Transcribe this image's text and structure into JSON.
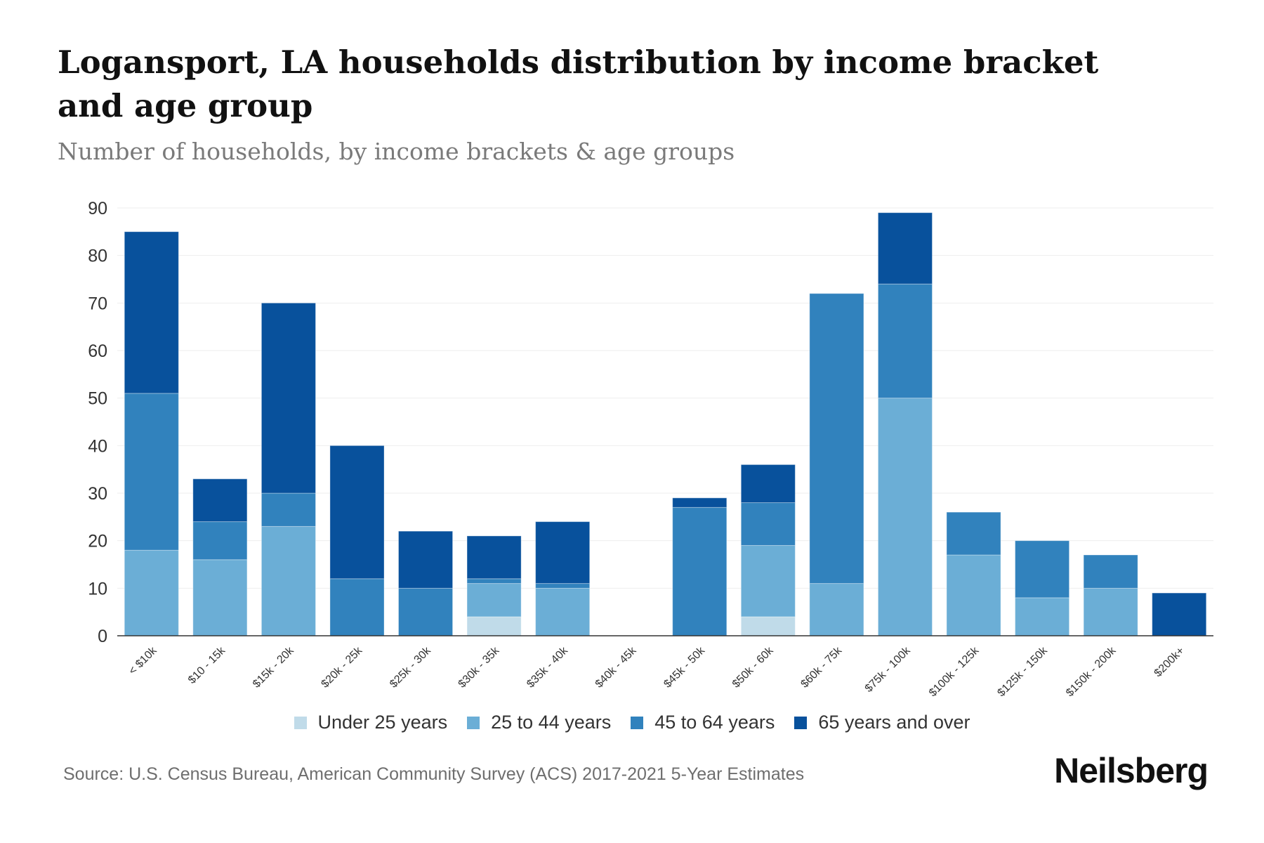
{
  "title": "Logansport, LA households distribution by income bracket and age group",
  "subtitle": "Number of households, by income brackets & age groups",
  "source": "Source: U.S. Census Bureau, American Community Survey (ACS) 2017-2021 5-Year Estimates",
  "brand": "Neilsberg",
  "chart_data": {
    "type": "bar",
    "stacked": true,
    "title": "Logansport, LA households distribution by income bracket and age group",
    "xlabel": "",
    "ylabel": "",
    "ylim": [
      0,
      90
    ],
    "yticks": [
      0,
      10,
      20,
      30,
      40,
      50,
      60,
      70,
      80,
      90
    ],
    "grid": true,
    "legend_position": "bottom",
    "categories": [
      "< $10k",
      "$10 - 15k",
      "$15k - 20k",
      "$20k - 25k",
      "$25k - 30k",
      "$30k - 35k",
      "$35k - 40k",
      "$40k - 45k",
      "$45k - 50k",
      "$50k - 60k",
      "$60k - 75k",
      "$75k - 100k",
      "$100k - 125k",
      "$125k - 150k",
      "$150k - 200k",
      "$200k+"
    ],
    "series": [
      {
        "name": "Under 25 years",
        "color": "#c0dbe9",
        "values": [
          0,
          0,
          0,
          0,
          0,
          4,
          0,
          0,
          0,
          4,
          0,
          0,
          0,
          0,
          0,
          0
        ]
      },
      {
        "name": "25 to 44 years",
        "color": "#6baed6",
        "values": [
          18,
          16,
          23,
          0,
          0,
          7,
          10,
          0,
          0,
          15,
          11,
          50,
          17,
          8,
          10,
          0
        ]
      },
      {
        "name": "45 to 64 years",
        "color": "#3182bd",
        "values": [
          33,
          8,
          7,
          12,
          10,
          1,
          1,
          0,
          27,
          9,
          61,
          24,
          9,
          12,
          7,
          0
        ]
      },
      {
        "name": "65 years and over",
        "color": "#08519c",
        "values": [
          34,
          9,
          40,
          28,
          12,
          9,
          13,
          0,
          2,
          8,
          0,
          15,
          0,
          0,
          0,
          9
        ]
      }
    ]
  }
}
